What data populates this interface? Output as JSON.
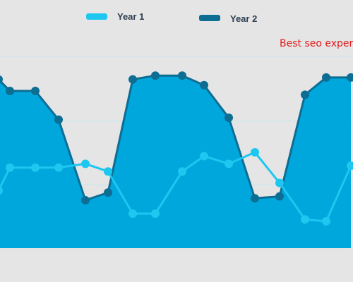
{
  "chart_data": {
    "type": "area",
    "title": "",
    "xlabel": "",
    "ylabel": "",
    "grid": true,
    "legend_position": "top-center",
    "annotation": "Best seo exper",
    "ylim": [
      0,
      100
    ],
    "series": [
      {
        "name": "Year 1",
        "type": "line",
        "color": "#1dc7f0",
        "x": [
          -2,
          14,
          50,
          83,
          121,
          153,
          188,
          220,
          258,
          289,
          324,
          361,
          396,
          432,
          462,
          497
        ],
        "values": [
          30,
          42,
          42,
          42,
          44,
          40,
          18,
          18,
          40,
          48,
          44,
          50,
          34,
          15,
          14,
          43
        ]
      },
      {
        "name": "Year 2",
        "type": "area",
        "color": "#0d6d93",
        "fill": "#00a7dc",
        "x": [
          -2,
          14,
          50,
          83,
          121,
          153,
          188,
          220,
          258,
          289,
          324,
          361,
          396,
          432,
          462,
          497
        ],
        "values": [
          88,
          82,
          82,
          67,
          25,
          29,
          88,
          90,
          90,
          85,
          68,
          26,
          27,
          80,
          89,
          89
        ]
      }
    ]
  }
}
